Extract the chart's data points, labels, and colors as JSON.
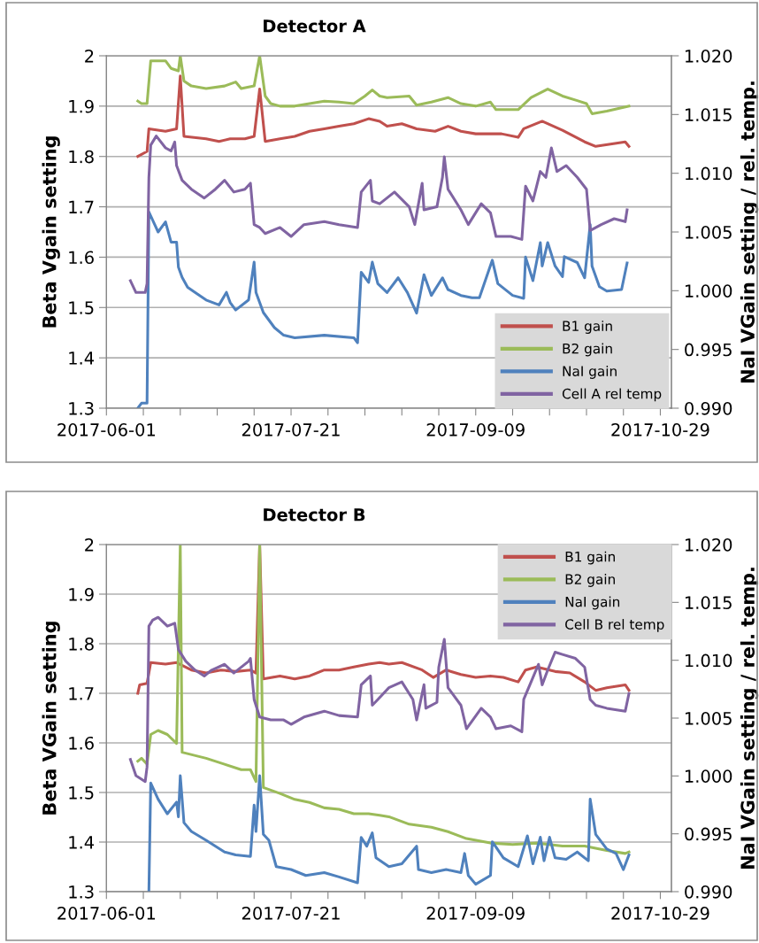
{
  "chart_data": [
    {
      "type": "line",
      "title": "Detector A",
      "ylabel": "Beta Vgain setting",
      "y2label": "NaI VGain setting / rel. temp.",
      "grid": "y",
      "legend": "bottom right",
      "xlim": [
        "2017-06-01",
        "2017-11-01"
      ],
      "xticks": [
        "2017-06-01",
        {
          "value": "2017-06-11",
          "label": null
        },
        {
          "value": "2017-06-21",
          "label": null
        },
        {
          "value": "2017-07-01",
          "label": null
        },
        {
          "value": "2017-07-11",
          "label": null
        },
        "2017-07-21",
        {
          "value": "2017-07-31",
          "label": null
        },
        {
          "value": "2017-08-10",
          "label": null
        },
        {
          "value": "2017-08-20",
          "label": null
        },
        {
          "value": "2017-08-30",
          "label": null
        },
        "2017-09-09",
        {
          "value": "2017-09-19",
          "label": null
        },
        {
          "value": "2017-09-29",
          "label": null
        },
        {
          "value": "2017-10-09",
          "label": null
        },
        {
          "value": "2017-10-19",
          "label": null
        },
        "2017-10-29"
      ],
      "ylim": [
        1.3,
        2
      ],
      "yticks": [
        1.3,
        1.4,
        1.5,
        1.6,
        1.7,
        1.8,
        1.9,
        2
      ],
      "y2lim": [
        0.99,
        1.02
      ],
      "y2ticks": [
        {
          "value": 0.99,
          "label": "0.990"
        },
        {
          "value": 0.995,
          "label": "0.995"
        },
        {
          "value": 1.0,
          "label": "1.000"
        },
        {
          "value": 1.005,
          "label": "1.005"
        },
        {
          "value": 1.01,
          "label": "1.010"
        },
        {
          "value": 1.015,
          "label": "1.015"
        },
        {
          "value": 1.02,
          "label": "1.020"
        }
      ],
      "series": [
        {
          "name": "B1 gain",
          "color": "#c0504d",
          "x": [
            "2017-06-09T12:00",
            "2017-06-12",
            "2017-06-12T12:00",
            "2017-06-17",
            "2017-06-20",
            "2017-06-21",
            "2017-06-22",
            "2017-06-28",
            "2017-07-01T12:00",
            "2017-07-04T12:00",
            "2017-07-08T12:00",
            "2017-07-11",
            "2017-07-12T12:00",
            "2017-07-14",
            "2017-07-18",
            "2017-07-22",
            "2017-07-26",
            "2017-07-30",
            "2017-08-03",
            "2017-08-07",
            "2017-08-11",
            "2017-08-14",
            "2017-08-16",
            "2017-08-20",
            "2017-08-24",
            "2017-08-29",
            "2017-09-01T12:00",
            "2017-09-05",
            "2017-09-09",
            "2017-09-13",
            "2017-09-16",
            "2017-09-20T12:00",
            "2017-09-22",
            "2017-09-27",
            "2017-10-02T12:00",
            "2017-10-08T12:00",
            "2017-10-11T12:00",
            "2017-10-19T12:00",
            "2017-10-20T12:00"
          ],
          "values": [
            1.8,
            1.81,
            1.855,
            1.85,
            1.855,
            1.96,
            1.84,
            1.835,
            1.83,
            1.835,
            1.835,
            1.84,
            1.934,
            1.83,
            1.835,
            1.84,
            1.85,
            1.855,
            1.86,
            1.865,
            1.875,
            1.87,
            1.86,
            1.865,
            1.855,
            1.85,
            1.86,
            1.85,
            1.845,
            1.845,
            1.845,
            1.838,
            1.855,
            1.87,
            1.852,
            1.829,
            1.82,
            1.829,
            1.82
          ]
        },
        {
          "name": "B2 gain",
          "color": "#9bbb59",
          "x": [
            "2017-06-09T12:00",
            "2017-06-10T12:00",
            "2017-06-12",
            "2017-06-13",
            "2017-06-17",
            "2017-06-18T12:00",
            "2017-06-20T12:00",
            "2017-06-21",
            "2017-06-22",
            "2017-06-24",
            "2017-06-28",
            "2017-07-03",
            "2017-07-06",
            "2017-07-07T12:00",
            "2017-07-11",
            "2017-07-12T12:00",
            "2017-07-14",
            "2017-07-15T12:00",
            "2017-07-18",
            "2017-07-22",
            "2017-07-26",
            "2017-07-30",
            "2017-08-03",
            "2017-08-07",
            "2017-08-10",
            "2017-08-12",
            "2017-08-14",
            "2017-08-16",
            "2017-08-22",
            "2017-08-24",
            "2017-08-28",
            "2017-09-01T12:00",
            "2017-09-05",
            "2017-09-09",
            "2017-09-13",
            "2017-09-14T12:00",
            "2017-09-20T12:00",
            "2017-09-24",
            "2017-09-28T12:00",
            "2017-10-02T12:00",
            "2017-10-06T12:00",
            "2017-10-09",
            "2017-10-10T12:00",
            "2017-10-14T12:00",
            "2017-10-20T12:00"
          ],
          "values": [
            1.91,
            1.905,
            1.905,
            1.99,
            1.99,
            1.975,
            1.97,
            2.0,
            1.95,
            1.94,
            1.935,
            1.94,
            1.948,
            1.935,
            1.94,
            2.0,
            1.92,
            1.905,
            1.9,
            1.9,
            1.905,
            1.91,
            1.908,
            1.905,
            1.92,
            1.932,
            1.92,
            1.917,
            1.92,
            1.902,
            1.908,
            1.917,
            1.905,
            1.9,
            1.908,
            1.893,
            1.893,
            1.917,
            1.934,
            1.92,
            1.911,
            1.905,
            1.885,
            1.89,
            1.9
          ]
        },
        {
          "name": "NaI gain",
          "color": "#4f81bd",
          "axis": "y2",
          "x": [
            "2017-06-09T12:00",
            "2017-06-10T12:00",
            "2017-06-12",
            "2017-06-12T12:00",
            "2017-06-15",
            "2017-06-17",
            "2017-06-18T12:00",
            "2017-06-20",
            "2017-06-20T12:00",
            "2017-06-21T12:00",
            "2017-06-23",
            "2017-06-25",
            "2017-06-28",
            "2017-07-01T12:00",
            "2017-07-03T12:00",
            "2017-07-04T12:00",
            "2017-07-06",
            "2017-07-09T12:00",
            "2017-07-11",
            "2017-07-11T12:00",
            "2017-07-13T12:00",
            "2017-07-16T12:00",
            "2017-07-19",
            "2017-07-22",
            "2017-07-30",
            "2017-08-07",
            "2017-08-08",
            "2017-08-09",
            "2017-08-11",
            "2017-08-12",
            "2017-08-13T12:00",
            "2017-08-16",
            "2017-08-19",
            "2017-08-21T12:00",
            "2017-08-24",
            "2017-08-26",
            "2017-08-28",
            "2017-08-31",
            "2017-09-01T12:00",
            "2017-09-05",
            "2017-09-08",
            "2017-09-10",
            "2017-09-13T12:00",
            "2017-09-15",
            "2017-09-19",
            "2017-09-22",
            "2017-09-22T12:00",
            "2017-09-24T12:00",
            "2017-09-26T12:00",
            "2017-09-27",
            "2017-09-28T12:00",
            "2017-09-30T12:00",
            "2017-10-02T12:00",
            "2017-10-03",
            "2017-10-06T12:00",
            "2017-10-08T12:00",
            "2017-10-10",
            "2017-10-10T12:00",
            "2017-10-12T12:00",
            "2017-10-14T12:00",
            "2017-10-18T12:00",
            "2017-10-20"
          ],
          "values": [
            0.99,
            0.99043,
            0.99043,
            1.00671,
            1.005,
            1.00586,
            1.00414,
            1.00414,
            1.002,
            1.00114,
            1.00029,
            0.99986,
            0.99921,
            0.99879,
            0.99986,
            0.999,
            0.99836,
            0.99921,
            1.00243,
            0.99986,
            0.99814,
            0.99686,
            0.99621,
            0.996,
            0.99621,
            0.996,
            0.99557,
            1.00157,
            1.00071,
            1.00243,
            1.0006,
            0.99985,
            1.0011,
            0.99985,
            0.9981,
            1.00136,
            0.9996,
            1.0011,
            1.0001,
            0.9996,
            0.9994,
            0.9994,
            1.0026,
            1.0006,
            0.9996,
            0.99935,
            1.00286,
            1.00085,
            1.0041,
            1.0021,
            1.0041,
            1.0021,
            1.0012,
            1.0029,
            1.0024,
            1.0011,
            1.00563,
            1.0021,
            1.00035,
            0.99997,
            1.0001,
            1.00236
          ]
        },
        {
          "name": "Cell A rel temp",
          "color": "#8064a2",
          "axis": "y2",
          "x": [
            "2017-06-07T12:00",
            "2017-06-09",
            "2017-06-11T12:00",
            "2017-06-12",
            "2017-06-12T12:00",
            "2017-06-13",
            "2017-06-14T12:00",
            "2017-06-17",
            "2017-06-18T12:00",
            "2017-06-19T12:00",
            "2017-06-20",
            "2017-06-21T12:00",
            "2017-06-24",
            "2017-06-27T12:00",
            "2017-06-30T12:00",
            "2017-07-03",
            "2017-07-05T12:00",
            "2017-07-08T12:00",
            "2017-07-10",
            "2017-07-11",
            "2017-07-12T12:00",
            "2017-07-14",
            "2017-07-18",
            "2017-07-21",
            "2017-07-24T12:00",
            "2017-07-30",
            "2017-08-03",
            "2017-08-08",
            "2017-08-09",
            "2017-08-11T12:00",
            "2017-08-12",
            "2017-08-14",
            "2017-08-18",
            "2017-08-22",
            "2017-08-23T12:00",
            "2017-08-25T12:00",
            "2017-08-26",
            "2017-08-29T12:00",
            "2017-08-31",
            "2017-08-31T12:00",
            "2017-09-01T12:00",
            "2017-09-05",
            "2017-09-07",
            "2017-09-10T12:00",
            "2017-09-13",
            "2017-09-14T12:00",
            "2017-09-18T12:00",
            "2017-09-21T12:00",
            "2017-09-22",
            "2017-09-22T12:00",
            "2017-09-24T12:00",
            "2017-09-26T12:00",
            "2017-09-28",
            "2017-09-29T12:00",
            "2017-10-01",
            "2017-10-03T12:00",
            "2017-10-06T12:00",
            "2017-10-09",
            "2017-10-10",
            "2017-10-13",
            "2017-10-16T12:00",
            "2017-10-19T12:00",
            "2017-10-20"
          ],
          "values": [
            1.00085,
            0.99985,
            0.99985,
            1.0006,
            1.00965,
            1.0124,
            1.01317,
            1.01216,
            1.0119,
            1.01266,
            1.01065,
            1.0094,
            1.00864,
            1.00789,
            1.00864,
            1.0094,
            1.0084,
            1.00864,
            1.00915,
            1.00563,
            1.00538,
            1.00487,
            1.00538,
            1.00462,
            1.00563,
            1.00588,
            1.00563,
            1.00538,
            1.0084,
            1.0094,
            1.00764,
            1.0074,
            1.0084,
            1.00714,
            1.00563,
            1.00915,
            1.00688,
            1.00714,
            1.00965,
            1.0114,
            1.00864,
            1.00688,
            1.00563,
            1.0074,
            1.00663,
            1.00462,
            1.00462,
            1.00437,
            1.00663,
            1.0089,
            1.00764,
            1.01015,
            1.00965,
            1.01216,
            1.01015,
            1.01065,
            1.00965,
            1.00864,
            1.00513,
            1.00563,
            1.00613,
            1.00588,
            1.00688
          ]
        }
      ]
    },
    {
      "type": "line",
      "title": "Detector B",
      "ylabel": "Beta VGain setting",
      "y2label": "NaI VGain setting / rel. temp.",
      "grid": "y",
      "legend": "top right",
      "xlim": [
        "2017-06-01",
        "2017-11-01"
      ],
      "xticks": [
        "2017-06-01",
        {
          "value": "2017-06-11",
          "label": null
        },
        {
          "value": "2017-06-21",
          "label": null
        },
        {
          "value": "2017-07-01",
          "label": null
        },
        {
          "value": "2017-07-11",
          "label": null
        },
        "2017-07-21",
        {
          "value": "2017-07-31",
          "label": null
        },
        {
          "value": "2017-08-10",
          "label": null
        },
        {
          "value": "2017-08-20",
          "label": null
        },
        {
          "value": "2017-08-30",
          "label": null
        },
        "2017-09-09",
        {
          "value": "2017-09-19",
          "label": null
        },
        {
          "value": "2017-09-29",
          "label": null
        },
        {
          "value": "2017-10-09",
          "label": null
        },
        {
          "value": "2017-10-19",
          "label": null
        },
        "2017-10-29"
      ],
      "ylim": [
        1.3,
        2
      ],
      "yticks": [
        1.3,
        1.4,
        1.5,
        1.6,
        1.7,
        1.8,
        1.9,
        2
      ],
      "y2lim": [
        0.99,
        1.02
      ],
      "y2ticks": [
        {
          "value": 0.99,
          "label": "0.990"
        },
        {
          "value": 0.995,
          "label": "0.995"
        },
        {
          "value": 1.0,
          "label": "1.000"
        },
        {
          "value": 1.005,
          "label": "1.005"
        },
        {
          "value": 1.01,
          "label": "1.010"
        },
        {
          "value": 1.015,
          "label": "1.015"
        },
        {
          "value": 1.02,
          "label": "1.020"
        }
      ],
      "series": [
        {
          "name": "B1 gain",
          "color": "#c0504d",
          "x": [
            "2017-06-09T12:00",
            "2017-06-10",
            "2017-06-12",
            "2017-06-13",
            "2017-06-17",
            "2017-06-20",
            "2017-06-24",
            "2017-06-28",
            "2017-07-02",
            "2017-07-06",
            "2017-07-10",
            "2017-07-11T12:00",
            "2017-07-12T12:00",
            "2017-07-13T12:00",
            "2017-07-18",
            "2017-07-22",
            "2017-07-26",
            "2017-07-30",
            "2017-08-03",
            "2017-08-07",
            "2017-08-11",
            "2017-08-14",
            "2017-08-16T12:00",
            "2017-08-20",
            "2017-08-25T12:00",
            "2017-08-28T12:00",
            "2017-09-01",
            "2017-09-05",
            "2017-09-09",
            "2017-09-13",
            "2017-09-16T12:00",
            "2017-09-20T12:00",
            "2017-09-22T12:00",
            "2017-09-25T12:00",
            "2017-09-30T12:00",
            "2017-10-04T12:00",
            "2017-10-08T12:00",
            "2017-10-11T12:00",
            "2017-10-14T12:00",
            "2017-10-19T12:00",
            "2017-10-20T12:00"
          ],
          "values": [
            1.7,
            1.717,
            1.72,
            1.762,
            1.759,
            1.762,
            1.747,
            1.741,
            1.747,
            1.744,
            1.747,
            1.741,
            2.0,
            1.729,
            1.735,
            1.729,
            1.735,
            1.747,
            1.747,
            1.753,
            1.759,
            1.762,
            1.759,
            1.762,
            1.747,
            1.732,
            1.747,
            1.738,
            1.732,
            1.735,
            1.732,
            1.723,
            1.747,
            1.753,
            1.744,
            1.741,
            1.723,
            1.706,
            1.711,
            1.717,
            1.706
          ]
        },
        {
          "name": "B2 gain",
          "color": "#9bbb59",
          "x": [
            "2017-06-09T12:00",
            "2017-06-10T12:00",
            "2017-06-12",
            "2017-06-13",
            "2017-06-15",
            "2017-06-17T12:00",
            "2017-06-20",
            "2017-06-21",
            "2017-06-21T12:00",
            "2017-06-28",
            "2017-07-03",
            "2017-07-07T12:00",
            "2017-07-10",
            "2017-07-11T12:00",
            "2017-07-12T12:00",
            "2017-07-13T12:00",
            "2017-07-18",
            "2017-07-22",
            "2017-07-26",
            "2017-07-30",
            "2017-08-03",
            "2017-08-07",
            "2017-08-11",
            "2017-08-14",
            "2017-08-16T12:00",
            "2017-08-22",
            "2017-08-28",
            "2017-09-01T12:00",
            "2017-09-06T12:00",
            "2017-09-13",
            "2017-09-19",
            "2017-09-25T12:00",
            "2017-10-02T12:00",
            "2017-10-08T12:00",
            "2017-10-14T12:00",
            "2017-10-19T12:00",
            "2017-10-20T12:00"
          ],
          "values": [
            1.563,
            1.569,
            1.557,
            1.617,
            1.625,
            1.617,
            1.599,
            2.0,
            1.581,
            1.569,
            1.557,
            1.546,
            1.546,
            1.522,
            2.0,
            1.51,
            1.498,
            1.486,
            1.48,
            1.469,
            1.466,
            1.457,
            1.457,
            1.454,
            1.451,
            1.436,
            1.43,
            1.421,
            1.407,
            1.398,
            1.395,
            1.398,
            1.392,
            1.392,
            1.383,
            1.377,
            1.38
          ]
        },
        {
          "name": "NaI gain",
          "color": "#4f81bd",
          "axis": "y2",
          "x": [
            "2017-06-12T12:00",
            "2017-06-13",
            "2017-06-15",
            "2017-06-17T12:00",
            "2017-06-20",
            "2017-06-20T12:00",
            "2017-06-21",
            "2017-06-22",
            "2017-06-24",
            "2017-06-28",
            "2017-07-03",
            "2017-07-06",
            "2017-07-10",
            "2017-07-11",
            "2017-07-11T12:00",
            "2017-07-12T12:00",
            "2017-07-13T12:00",
            "2017-07-15",
            "2017-07-17",
            "2017-07-21",
            "2017-07-25",
            "2017-07-30",
            "2017-08-03",
            "2017-08-08",
            "2017-08-09",
            "2017-08-10T12:00",
            "2017-08-12",
            "2017-08-13",
            "2017-08-16T12:00",
            "2017-08-20",
            "2017-08-24",
            "2017-08-24T12:00",
            "2017-08-28",
            "2017-09-01",
            "2017-09-05",
            "2017-09-06",
            "2017-09-07",
            "2017-09-09",
            "2017-09-13",
            "2017-09-13T12:00",
            "2017-09-16T12:00",
            "2017-09-20T12:00",
            "2017-09-23",
            "2017-09-24T12:00",
            "2017-09-26T12:00",
            "2017-09-27T12:00",
            "2017-09-29",
            "2017-09-30T12:00",
            "2017-10-03T12:00",
            "2017-10-06T12:00",
            "2017-10-09T12:00",
            "2017-10-10",
            "2017-10-11T12:00",
            "2017-10-14T12:00",
            "2017-10-17",
            "2017-10-19",
            "2017-10-20T12:00"
          ],
          "values": [
            0.99,
            0.99939,
            0.99799,
            0.99673,
            0.99774,
            0.99647,
            1.00002,
            0.99596,
            0.9952,
            0.99444,
            0.99343,
            0.99317,
            0.99305,
            0.99748,
            0.9952,
            1.00002,
            0.99495,
            0.99444,
            0.99216,
            0.99191,
            0.9914,
            0.99165,
            0.99127,
            0.99077,
            0.99469,
            0.99393,
            0.99508,
            0.99292,
            0.99216,
            0.99241,
            0.99393,
            0.99191,
            0.99165,
            0.99191,
            0.99165,
            0.9933,
            0.9914,
            0.99064,
            0.9914,
            0.99431,
            0.99292,
            0.99216,
            0.99482,
            0.99241,
            0.9947,
            0.99267,
            0.9947,
            0.99292,
            0.9928,
            0.99343,
            0.99267,
            0.998,
            0.99495,
            0.99368,
            0.9933,
            0.99191,
            0.99317
          ]
        },
        {
          "name": "Cell B rel temp",
          "color": "#8064a2",
          "axis": "y2",
          "x": [
            "2017-06-07T12:00",
            "2017-06-09",
            "2017-06-11T12:00",
            "2017-06-12",
            "2017-06-12T12:00",
            "2017-06-13T12:00",
            "2017-06-15",
            "2017-06-17T12:00",
            "2017-06-19T12:00",
            "2017-06-20T12:00",
            "2017-06-22T12:00",
            "2017-06-25",
            "2017-06-27T12:00",
            "2017-06-29T12:00",
            "2017-07-03",
            "2017-07-05T12:00",
            "2017-07-09T12:00",
            "2017-07-10",
            "2017-07-11",
            "2017-07-12T12:00",
            "2017-07-15T12:00",
            "2017-07-19",
            "2017-07-21",
            "2017-07-24T12:00",
            "2017-07-30",
            "2017-08-03",
            "2017-08-08",
            "2017-08-09",
            "2017-08-11T12:00",
            "2017-08-12",
            "2017-08-13T12:00",
            "2017-08-16T12:00",
            "2017-08-20",
            "2017-08-23",
            "2017-08-24",
            "2017-08-26",
            "2017-08-26T12:00",
            "2017-08-29T12:00",
            "2017-08-30",
            "2017-08-31T12:00",
            "2017-09-01T12:00",
            "2017-09-05",
            "2017-09-06T12:00",
            "2017-09-10T12:00",
            "2017-09-13",
            "2017-09-14T12:00",
            "2017-09-18T12:00",
            "2017-09-21T12:00",
            "2017-09-22",
            "2017-09-24",
            "2017-09-26",
            "2017-09-27",
            "2017-09-28T12:00",
            "2017-09-30T12:00",
            "2017-10-02T12:00",
            "2017-10-06",
            "2017-10-08T12:00",
            "2017-10-10",
            "2017-10-11T12:00",
            "2017-10-14T12:00",
            "2017-10-19T12:00",
            "2017-10-20T12:00"
          ],
          "values": [
            1.00142,
            1.00002,
            0.99951,
            1.00078,
            1.01295,
            1.01346,
            1.01371,
            1.01295,
            1.0132,
            1.01092,
            1.00991,
            1.00915,
            1.00864,
            1.00915,
            1.00965,
            1.00889,
            1.00991,
            1.01016,
            1.00661,
            1.00509,
            1.00484,
            1.00484,
            1.00446,
            1.00509,
            1.0056,
            1.00522,
            1.00509,
            1.00788,
            1.00864,
            1.00611,
            1.00661,
            1.00763,
            1.00813,
            1.00661,
            1.00484,
            1.00788,
            1.00585,
            1.00636,
            1.0094,
            1.01181,
            1.00763,
            1.00611,
            1.00408,
            1.00585,
            1.00509,
            1.00408,
            1.00433,
            1.00382,
            1.00661,
            1.00813,
            1.00965,
            1.00788,
            1.00915,
            1.0107,
            1.0105,
            1.01016,
            1.0094,
            1.00661,
            1.00611,
            1.00585,
            1.0056,
            1.00712
          ]
        }
      ]
    }
  ]
}
